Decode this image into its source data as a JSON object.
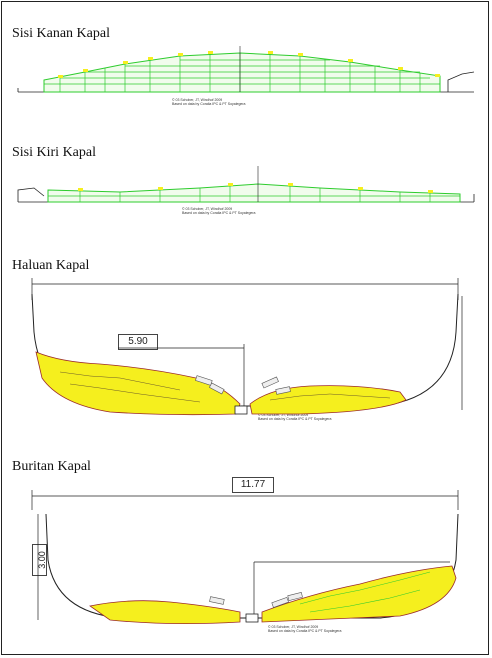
{
  "sections": [
    {
      "title": "Sisi Kanan Kapal",
      "caption_line1": "© 03 Schober, JT, Windhof 2009",
      "caption_line2": "Based on data by Coralia IPC & PT Soyalegera"
    },
    {
      "title": "Sisi Kiri Kapal",
      "caption_line1": "© 03 Schober, JT, Windhof 2009",
      "caption_line2": "Based on data by Coralia IPC & PT Soyalegera"
    },
    {
      "title": "Haluan Kapal",
      "caption_line1": "© 03 Schober, JT, Windhof 2009",
      "caption_line2": "Based on data by Coralia IPC & PT Soyalegera",
      "dim_label": "5.90"
    },
    {
      "title": "Buritan Kapal",
      "caption_line1": "© 03 Schober, JT, Windhof 2009",
      "caption_line2": "Based on data by Coralia IPC & PT Soyalegera",
      "dim_width": "11.77",
      "dim_height": "3.00"
    }
  ],
  "colors": {
    "hull_fill": "#f5ef1e",
    "frame_green": "#2ecc2e",
    "debris": "#9b2a2a",
    "line": "#222222"
  }
}
